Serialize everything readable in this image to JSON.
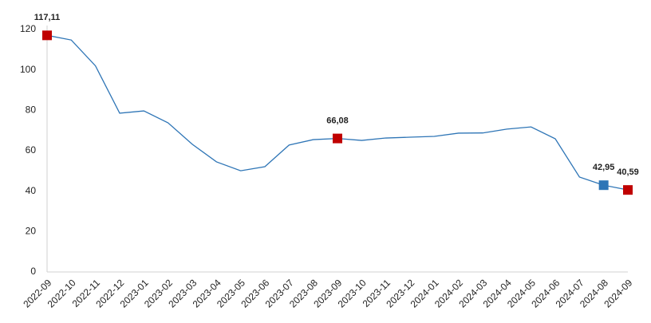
{
  "chart_data": {
    "type": "line",
    "categories": [
      "2022-09",
      "2022-10",
      "2022-11",
      "2022-12",
      "2023-01",
      "2023-02",
      "2023-03",
      "2023-04",
      "2023-05",
      "2023-06",
      "2023-07",
      "2023-08",
      "2023-09",
      "2023-10",
      "2023-11",
      "2023-12",
      "2024-01",
      "2024-02",
      "2024-03",
      "2024-04",
      "2024-05",
      "2024-06",
      "2024-07",
      "2024-08",
      "2024-09"
    ],
    "series": [
      {
        "color": "#2e75b6",
        "values": [
          117.11,
          114.8,
          102,
          78.6,
          79.7,
          73.8,
          63.2,
          54.5,
          50.1,
          52.1,
          62.8,
          65.5,
          66.08,
          65.1,
          66.3,
          66.7,
          67.1,
          68.7,
          68.8,
          70.7,
          71.8,
          65.9,
          47,
          42.95,
          40.59
        ],
        "value_labels": [
          "117,11",
          null,
          null,
          null,
          null,
          null,
          null,
          null,
          null,
          null,
          null,
          null,
          "66,08",
          null,
          null,
          null,
          null,
          null,
          null,
          null,
          null,
          null,
          null,
          "42,95",
          "40,59"
        ],
        "marker_colors": [
          "#c00000",
          null,
          null,
          null,
          null,
          null,
          null,
          null,
          null,
          null,
          null,
          null,
          "#c00000",
          null,
          null,
          null,
          null,
          null,
          null,
          null,
          null,
          null,
          null,
          "#2e75b6",
          "#c00000"
        ]
      }
    ],
    "ylim": [
      0,
      120
    ],
    "yticks": [
      0,
      20,
      40,
      60,
      80,
      100,
      120
    ],
    "grid": false
  }
}
